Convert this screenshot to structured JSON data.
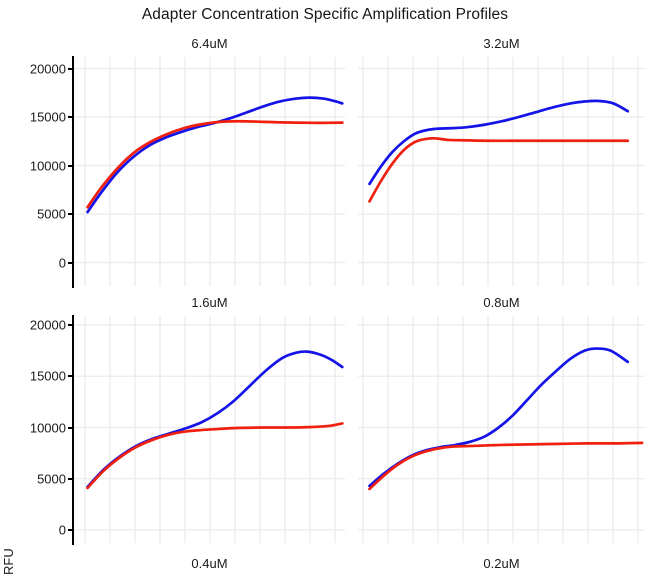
{
  "figure": {
    "title": "Adapter Concentration Specific Amplification Profiles",
    "y_axis_label": "RFU"
  },
  "colors": {
    "blue_series": "#1414e8",
    "red_series": "#f0200f",
    "grid": "#ebebeb",
    "axis": "#000000",
    "text": "#1b1b1b",
    "background": "#ffffff"
  },
  "chart_data": {
    "type": "line",
    "title": "Adapter Concentration Specific Amplification Profiles",
    "ylabel": "RFU",
    "xlabel": "",
    "legend": "none",
    "grid": "on",
    "y_ticks": [
      20000,
      15000,
      10000,
      5000,
      0
    ],
    "ylim": [
      -2300,
      21200
    ],
    "point_format": "[x_fraction_of_panel_width, RFU]",
    "series_names": [
      "blue",
      "red"
    ],
    "panels": [
      {
        "title": "6.4uM",
        "visible": "full",
        "series": {
          "blue": [
            [
              0.05,
              5200
            ],
            [
              0.1,
              7200
            ],
            [
              0.16,
              9300
            ],
            [
              0.22,
              10900
            ],
            [
              0.28,
              12100
            ],
            [
              0.34,
              12900
            ],
            [
              0.4,
              13500
            ],
            [
              0.46,
              14000
            ],
            [
              0.52,
              14400
            ],
            [
              0.58,
              14900
            ],
            [
              0.64,
              15500
            ],
            [
              0.7,
              16100
            ],
            [
              0.76,
              16600
            ],
            [
              0.82,
              16900
            ],
            [
              0.87,
              17000
            ],
            [
              0.92,
              16900
            ],
            [
              0.96,
              16650
            ],
            [
              0.99,
              16400
            ]
          ],
          "red": [
            [
              0.05,
              5700
            ],
            [
              0.1,
              7700
            ],
            [
              0.16,
              9700
            ],
            [
              0.22,
              11300
            ],
            [
              0.28,
              12400
            ],
            [
              0.34,
              13200
            ],
            [
              0.4,
              13800
            ],
            [
              0.46,
              14200
            ],
            [
              0.52,
              14450
            ],
            [
              0.58,
              14550
            ],
            [
              0.64,
              14550
            ],
            [
              0.7,
              14500
            ],
            [
              0.76,
              14450
            ],
            [
              0.82,
              14420
            ],
            [
              0.88,
              14400
            ],
            [
              0.94,
              14400
            ],
            [
              0.99,
              14420
            ]
          ]
        }
      },
      {
        "title": "3.2uM",
        "visible": "full",
        "series": {
          "blue": [
            [
              0.04,
              8100
            ],
            [
              0.08,
              9900
            ],
            [
              0.12,
              11400
            ],
            [
              0.16,
              12500
            ],
            [
              0.2,
              13300
            ],
            [
              0.24,
              13650
            ],
            [
              0.28,
              13800
            ],
            [
              0.33,
              13850
            ],
            [
              0.38,
              13950
            ],
            [
              0.44,
              14200
            ],
            [
              0.5,
              14550
            ],
            [
              0.56,
              15000
            ],
            [
              0.62,
              15500
            ],
            [
              0.68,
              16000
            ],
            [
              0.74,
              16400
            ],
            [
              0.79,
              16600
            ],
            [
              0.84,
              16650
            ],
            [
              0.89,
              16400
            ],
            [
              0.94,
              15600
            ]
          ],
          "red": [
            [
              0.04,
              6300
            ],
            [
              0.08,
              8400
            ],
            [
              0.12,
              10200
            ],
            [
              0.16,
              11600
            ],
            [
              0.2,
              12450
            ],
            [
              0.24,
              12750
            ],
            [
              0.27,
              12800
            ],
            [
              0.31,
              12650
            ],
            [
              0.36,
              12600
            ],
            [
              0.45,
              12550
            ],
            [
              0.55,
              12550
            ],
            [
              0.65,
              12550
            ],
            [
              0.75,
              12550
            ],
            [
              0.85,
              12550
            ],
            [
              0.94,
              12550
            ]
          ]
        }
      },
      {
        "title": "1.6uM",
        "visible": "full",
        "series": {
          "blue": [
            [
              0.05,
              4200
            ],
            [
              0.11,
              5900
            ],
            [
              0.17,
              7200
            ],
            [
              0.23,
              8200
            ],
            [
              0.29,
              8900
            ],
            [
              0.35,
              9400
            ],
            [
              0.41,
              9900
            ],
            [
              0.47,
              10500
            ],
            [
              0.53,
              11400
            ],
            [
              0.59,
              12600
            ],
            [
              0.65,
              14100
            ],
            [
              0.71,
              15600
            ],
            [
              0.77,
              16800
            ],
            [
              0.82,
              17300
            ],
            [
              0.86,
              17400
            ],
            [
              0.91,
              17100
            ],
            [
              0.95,
              16600
            ],
            [
              0.99,
              15900
            ]
          ],
          "red": [
            [
              0.05,
              4100
            ],
            [
              0.11,
              5800
            ],
            [
              0.17,
              7100
            ],
            [
              0.23,
              8100
            ],
            [
              0.29,
              8800
            ],
            [
              0.35,
              9300
            ],
            [
              0.41,
              9600
            ],
            [
              0.47,
              9750
            ],
            [
              0.53,
              9850
            ],
            [
              0.6,
              9950
            ],
            [
              0.7,
              10000
            ],
            [
              0.8,
              10000
            ],
            [
              0.88,
              10050
            ],
            [
              0.94,
              10150
            ],
            [
              0.99,
              10400
            ]
          ]
        }
      },
      {
        "title": "0.8uM",
        "visible": "full",
        "series": {
          "blue": [
            [
              0.04,
              4300
            ],
            [
              0.09,
              5500
            ],
            [
              0.14,
              6500
            ],
            [
              0.19,
              7300
            ],
            [
              0.24,
              7800
            ],
            [
              0.29,
              8100
            ],
            [
              0.34,
              8300
            ],
            [
              0.39,
              8600
            ],
            [
              0.44,
              9100
            ],
            [
              0.49,
              10000
            ],
            [
              0.54,
              11200
            ],
            [
              0.59,
              12700
            ],
            [
              0.64,
              14200
            ],
            [
              0.69,
              15500
            ],
            [
              0.74,
              16700
            ],
            [
              0.79,
              17500
            ],
            [
              0.83,
              17700
            ],
            [
              0.88,
              17500
            ],
            [
              0.94,
              16400
            ]
          ],
          "red": [
            [
              0.04,
              4000
            ],
            [
              0.09,
              5300
            ],
            [
              0.14,
              6400
            ],
            [
              0.19,
              7200
            ],
            [
              0.24,
              7700
            ],
            [
              0.29,
              8000
            ],
            [
              0.34,
              8150
            ],
            [
              0.4,
              8200
            ],
            [
              0.5,
              8300
            ],
            [
              0.6,
              8350
            ],
            [
              0.7,
              8400
            ],
            [
              0.8,
              8450
            ],
            [
              0.9,
              8450
            ],
            [
              0.99,
              8500
            ]
          ]
        }
      },
      {
        "title": "0.4uM",
        "visible": "title-only"
      },
      {
        "title": "0.2uM",
        "visible": "title-only"
      }
    ]
  }
}
